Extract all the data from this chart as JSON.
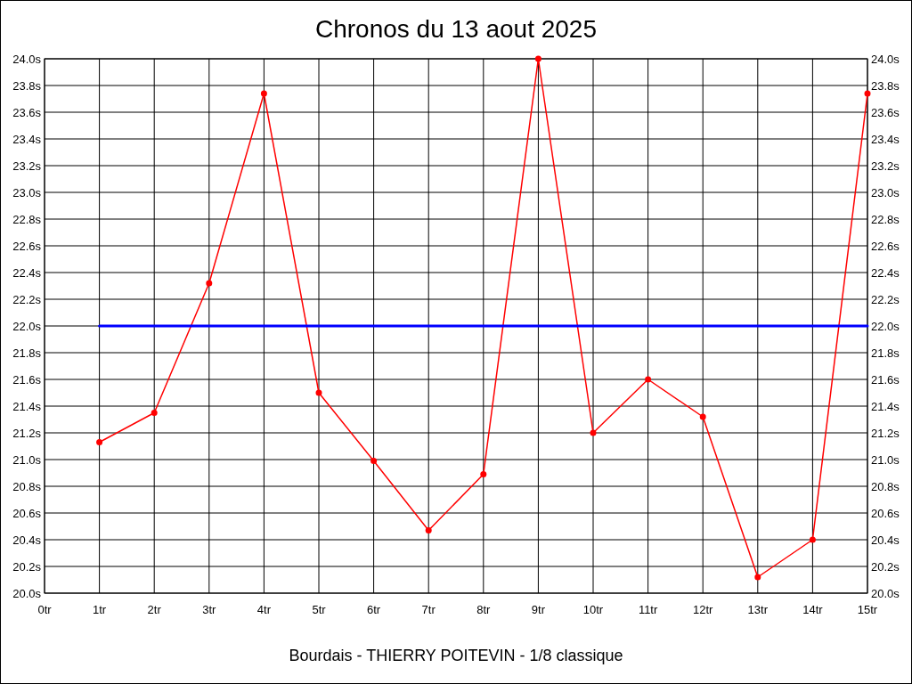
{
  "chart_data": {
    "type": "line",
    "title": "Chronos du 13 aout 2025",
    "xlabel": "Bourdais - THIERRY POITEVIN - 1/8 classique",
    "xlim": [
      0,
      15
    ],
    "xticks": [
      {
        "value": 0,
        "label": "0tr"
      },
      {
        "value": 1,
        "label": "1tr"
      },
      {
        "value": 2,
        "label": "2tr"
      },
      {
        "value": 3,
        "label": "3tr"
      },
      {
        "value": 4,
        "label": "4tr"
      },
      {
        "value": 5,
        "label": "5tr"
      },
      {
        "value": 6,
        "label": "6tr"
      },
      {
        "value": 7,
        "label": "7tr"
      },
      {
        "value": 8,
        "label": "8tr"
      },
      {
        "value": 9,
        "label": "9tr"
      },
      {
        "value": 10,
        "label": "10tr"
      },
      {
        "value": 11,
        "label": "11tr"
      },
      {
        "value": 12,
        "label": "12tr"
      },
      {
        "value": 13,
        "label": "13tr"
      },
      {
        "value": 14,
        "label": "14tr"
      },
      {
        "value": 15,
        "label": "15tr"
      }
    ],
    "ylim": [
      20,
      24
    ],
    "yticks": [
      {
        "value": 20,
        "label": "20.0s"
      },
      {
        "value": 20.2,
        "label": "20.2s"
      },
      {
        "value": 20.4,
        "label": "20.4s"
      },
      {
        "value": 20.6,
        "label": "20.6s"
      },
      {
        "value": 20.8,
        "label": "20.8s"
      },
      {
        "value": 21,
        "label": "21.0s"
      },
      {
        "value": 21.2,
        "label": "21.2s"
      },
      {
        "value": 21.4,
        "label": "21.4s"
      },
      {
        "value": 21.6,
        "label": "21.6s"
      },
      {
        "value": 21.8,
        "label": "21.8s"
      },
      {
        "value": 22,
        "label": "22.0s"
      },
      {
        "value": 22.2,
        "label": "22.2s"
      },
      {
        "value": 22.4,
        "label": "22.4s"
      },
      {
        "value": 22.6,
        "label": "22.6s"
      },
      {
        "value": 22.8,
        "label": "22.8s"
      },
      {
        "value": 23,
        "label": "23.0s"
      },
      {
        "value": 23.2,
        "label": "23.2s"
      },
      {
        "value": 23.4,
        "label": "23.4s"
      },
      {
        "value": 23.6,
        "label": "23.6s"
      },
      {
        "value": 23.8,
        "label": "23.8s"
      },
      {
        "value": 24,
        "label": "24.0s"
      }
    ],
    "y2lim": [
      20,
      24
    ],
    "y2ticks": [
      {
        "value": 20,
        "label": "20.0s"
      },
      {
        "value": 20.2,
        "label": "20.2s"
      },
      {
        "value": 20.4,
        "label": "20.4s"
      },
      {
        "value": 20.6,
        "label": "20.6s"
      },
      {
        "value": 20.8,
        "label": "20.8s"
      },
      {
        "value": 21,
        "label": "21.0s"
      },
      {
        "value": 21.2,
        "label": "21.2s"
      },
      {
        "value": 21.4,
        "label": "21.4s"
      },
      {
        "value": 21.6,
        "label": "21.6s"
      },
      {
        "value": 21.8,
        "label": "21.8s"
      },
      {
        "value": 22,
        "label": "22.0s"
      },
      {
        "value": 22.2,
        "label": "22.2s"
      },
      {
        "value": 22.4,
        "label": "22.4s"
      },
      {
        "value": 22.6,
        "label": "22.6s"
      },
      {
        "value": 22.8,
        "label": "22.8s"
      },
      {
        "value": 23,
        "label": "23.0s"
      },
      {
        "value": 23.2,
        "label": "23.2s"
      },
      {
        "value": 23.4,
        "label": "23.4s"
      },
      {
        "value": 23.6,
        "label": "23.6s"
      },
      {
        "value": 23.8,
        "label": "23.8s"
      },
      {
        "value": 24,
        "label": "24.0s"
      }
    ],
    "grid": true,
    "series": [
      {
        "color": "#ff0000",
        "marker": "circle",
        "x": [
          1,
          2,
          3,
          4,
          5,
          6,
          7,
          8,
          9,
          10,
          11,
          12,
          13,
          14,
          15
        ],
        "values": [
          21.13,
          21.35,
          22.32,
          23.74,
          21.5,
          20.99,
          20.47,
          20.89,
          24.0,
          21.2,
          21.6,
          21.32,
          20.12,
          20.4,
          23.74
        ]
      },
      {
        "color": "#0000ff",
        "marker": "none",
        "x": [
          1,
          15
        ],
        "values": [
          22,
          22
        ]
      }
    ]
  }
}
